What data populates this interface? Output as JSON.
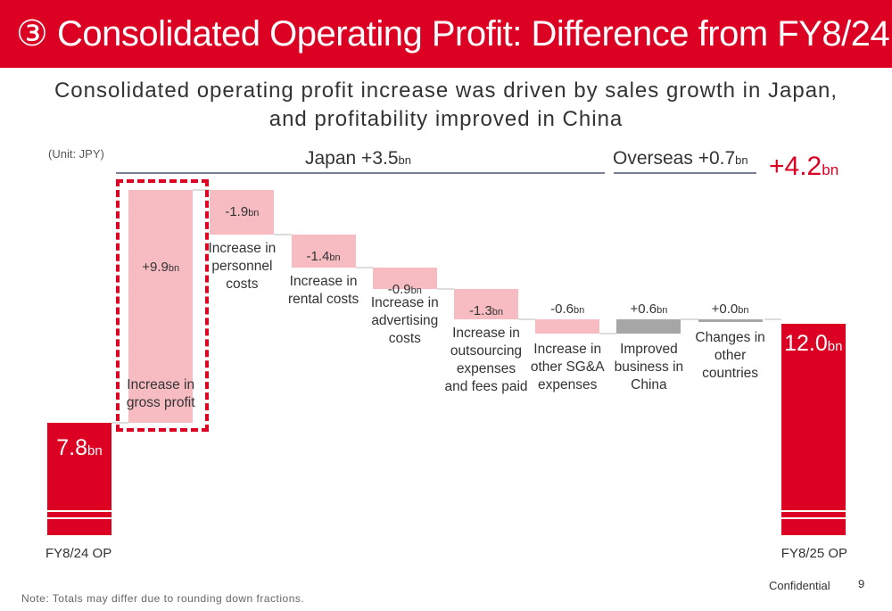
{
  "header": {
    "title": "③ Consolidated  Operating Profit: Difference from FY8/24"
  },
  "subtitle": {
    "line1": "Consolidated operating profit increase was driven by sales growth in Japan,",
    "line2": "and profitability improved in China"
  },
  "unit": "(Unit: JPY)",
  "segments": {
    "japan": "Japan +3.5",
    "overseas": "Overseas +0.7",
    "total": "+4.2",
    "suffix": "bn"
  },
  "chart_data": {
    "type": "waterfall",
    "unit": "bn JPY",
    "start": {
      "label": "FY8/24 OP",
      "value": 7.8,
      "display": "7.8"
    },
    "end": {
      "label": "FY8/25 OP",
      "value": 12.0,
      "display": "12.0"
    },
    "steps": [
      {
        "label": "Increase in gross profit",
        "value": 9.9,
        "display": "+9.9",
        "color": "#f6bcc2",
        "segment": "Japan"
      },
      {
        "label": "Increase in personnel costs",
        "value": -1.9,
        "display": "-1.9",
        "color": "#f6bcc2",
        "segment": "Japan"
      },
      {
        "label": "Increase in rental costs",
        "value": -1.4,
        "display": "-1.4",
        "color": "#f6bcc2",
        "segment": "Japan"
      },
      {
        "label": "Increase in advertising costs",
        "value": -0.9,
        "display": "-0.9",
        "color": "#f6bcc2",
        "segment": "Japan"
      },
      {
        "label": "Increase in outsourcing expenses and fees paid",
        "value": -1.3,
        "display": "-1.3",
        "color": "#f6bcc2",
        "segment": "Japan"
      },
      {
        "label": "Increase in other SG&A expenses",
        "value": -0.6,
        "display": "-0.6",
        "color": "#f6bcc2",
        "segment": "Japan"
      },
      {
        "label": "Improved business in China",
        "value": 0.6,
        "display": "+0.6",
        "color": "#a6a6a6",
        "segment": "Overseas"
      },
      {
        "label": "Changes in other countries",
        "value": 0.0,
        "display": "+0.0",
        "color": "#a6a6a6",
        "segment": "Overseas"
      }
    ],
    "total_color": "#dc0022",
    "suffix": "bn"
  },
  "footer": {
    "note": "Note: Totals may differ due to rounding down fractions.",
    "confidential": "Confidential",
    "page": "9"
  }
}
